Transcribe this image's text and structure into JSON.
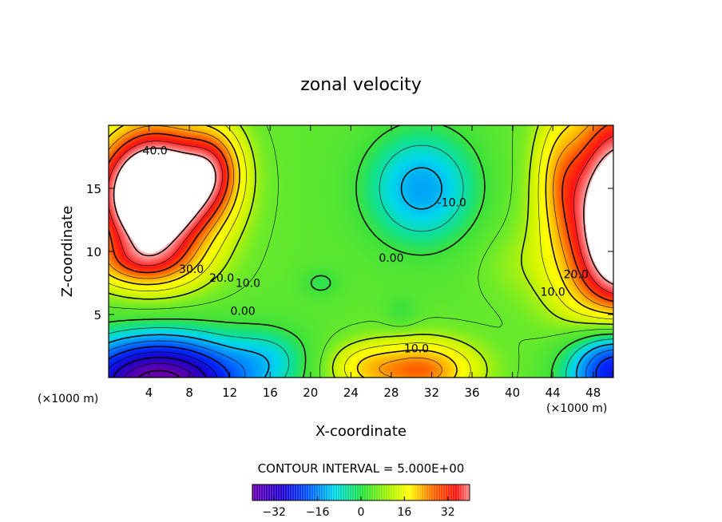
{
  "chart_data": {
    "type": "contour",
    "title": "zonal velocity",
    "xlabel": "X-coordinate",
    "ylabel": "Z-coordinate",
    "x_unit": "(×1000 m)",
    "xlim": [
      0,
      50
    ],
    "ylim": [
      0,
      20
    ],
    "x_ticks": [
      4,
      8,
      12,
      16,
      20,
      24,
      28,
      32,
      36,
      40,
      44,
      48
    ],
    "y_ticks": [
      5,
      10,
      15
    ],
    "contour_interval_text": "CONTOUR INTERVAL = 5.000E+00",
    "contour_labels": [
      {
        "text": "40.0",
        "x": 4.6,
        "y": 18.0
      },
      {
        "text": "30.0",
        "x": 8.2,
        "y": 8.6
      },
      {
        "text": "20.0",
        "x": 11.2,
        "y": 7.9
      },
      {
        "text": "10.0",
        "x": 13.8,
        "y": 7.5
      },
      {
        "text": "0.00",
        "x": 13.3,
        "y": 5.3
      },
      {
        "text": "0.00",
        "x": 28.0,
        "y": 9.5
      },
      {
        "text": "-10.0",
        "x": 34.0,
        "y": 13.9
      },
      {
        "text": "10.0",
        "x": 30.5,
        "y": 2.3
      },
      {
        "text": "20.0",
        "x": 46.3,
        "y": 8.2
      },
      {
        "text": "10.0",
        "x": 44.0,
        "y": 6.8
      }
    ],
    "colorbar": {
      "range": [
        -40,
        40
      ],
      "tick_values": [
        -32,
        -16,
        0,
        16,
        32
      ],
      "tick_labels": [
        "−32",
        "−16",
        "0",
        "16",
        "32"
      ]
    }
  },
  "colors": {
    "purple": "#6a00b0",
    "blue": "#0000e0",
    "cyan": "#00e0e0",
    "green": "#20e000",
    "yellow": "#ffff00",
    "red": "#ff1000",
    "white": "#ffffff"
  }
}
